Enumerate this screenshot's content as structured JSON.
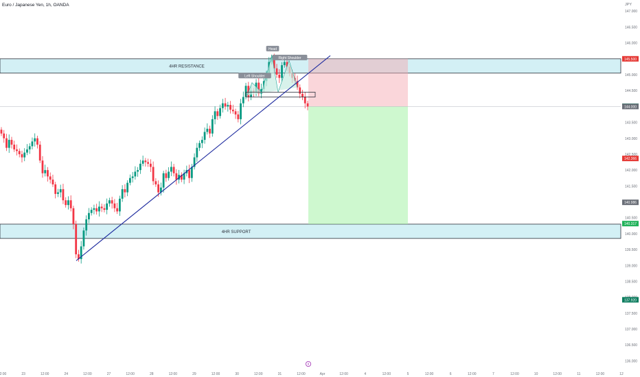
{
  "header": {
    "symbol_title": "Euro / Japanese Yen, 1h, OANDA",
    "currency": "JPY"
  },
  "chart_data": {
    "type": "candlestick",
    "symbol": "Euro / Japanese Yen, 1h, OANDA",
    "currency": "JPY",
    "ylim": [
      135.75,
      147.35
    ],
    "y_ticks": [
      136.0,
      136.5,
      137.0,
      137.5,
      138.0,
      138.5,
      139.0,
      139.5,
      140.0,
      140.5,
      141.0,
      141.5,
      142.0,
      142.5,
      143.0,
      143.5,
      144.0,
      144.5,
      145.0,
      145.5,
      146.0,
      146.5,
      147.0
    ],
    "x_ticks": [
      "12:00",
      "23",
      "12:00",
      "24",
      "12:00",
      "27",
      "12:00",
      "28",
      "12:00",
      "29",
      "12:00",
      "30",
      "12:00",
      "31",
      "12:00",
      "Apr",
      "12:00",
      "4",
      "12:00",
      "5",
      "12:00",
      "6",
      "12:00",
      "7",
      "12:00",
      "10",
      "12:00",
      "11",
      "12:00",
      "12"
    ],
    "zones": [
      {
        "label": "4HR RESISTANCE",
        "top": 145.5,
        "bottom": 145.05
      },
      {
        "label": "4HR SUPPORT",
        "top": 140.3,
        "bottom": 139.85
      }
    ],
    "pattern_labels": [
      "Left Shoulder",
      "Head",
      "Right Shoulder"
    ],
    "position": {
      "type": "short",
      "entry": 144.0,
      "stop": 145.5,
      "target": 140.3
    },
    "price_labels": [
      {
        "value": "145.500",
        "color": "#e53935"
      },
      {
        "value": "144.008",
        "color": "#0d7d5f"
      },
      {
        "value": "144.000",
        "color": "#6b6f78"
      },
      {
        "value": "142.366",
        "color": "#e53935"
      },
      {
        "value": "140.986",
        "color": "#6b6f78"
      },
      {
        "value": "140.317",
        "color": "#21b25a"
      },
      {
        "value": "137.920",
        "color": "#0d7d5f"
      }
    ],
    "close_series": [
      143.15,
      143.0,
      142.7,
      142.95,
      142.8,
      142.65,
      142.6,
      142.5,
      142.4,
      142.55,
      142.65,
      142.75,
      142.9,
      143.0,
      142.8,
      142.3,
      141.9,
      142.0,
      141.8,
      141.7,
      141.55,
      141.25,
      141.3,
      141.4,
      141.05,
      140.9,
      141.05,
      140.8,
      140.3,
      139.35,
      139.2,
      139.6,
      140.1,
      140.45,
      140.65,
      140.75,
      140.8,
      140.7,
      140.85,
      140.8,
      140.75,
      140.95,
      141.05,
      140.95,
      140.8,
      140.7,
      141.1,
      141.4,
      141.3,
      141.6,
      141.75,
      141.8,
      141.95,
      142.0,
      142.2,
      142.3,
      142.25,
      142.2,
      142.1,
      141.65,
      141.55,
      141.3,
      141.45,
      141.9,
      141.75,
      141.95,
      142.1,
      141.9,
      141.7,
      141.85,
      141.7,
      141.9,
      142.0,
      141.75,
      142.1,
      142.4,
      142.7,
      142.85,
      142.95,
      143.2,
      143.3,
      143.15,
      143.6,
      143.85,
      143.7,
      143.95,
      144.1,
      144.0,
      144.05,
      143.9,
      143.85,
      143.75,
      143.6,
      144.1,
      144.3,
      144.65,
      144.3,
      144.5,
      144.45,
      144.75,
      144.4,
      144.55,
      144.8,
      145.0,
      145.4,
      145.55,
      145.2,
      145.0,
      144.9,
      145.3,
      145.4,
      145.25,
      145.05,
      144.9,
      144.8,
      144.6,
      144.4,
      144.3,
      144.1,
      144.0
    ]
  }
}
